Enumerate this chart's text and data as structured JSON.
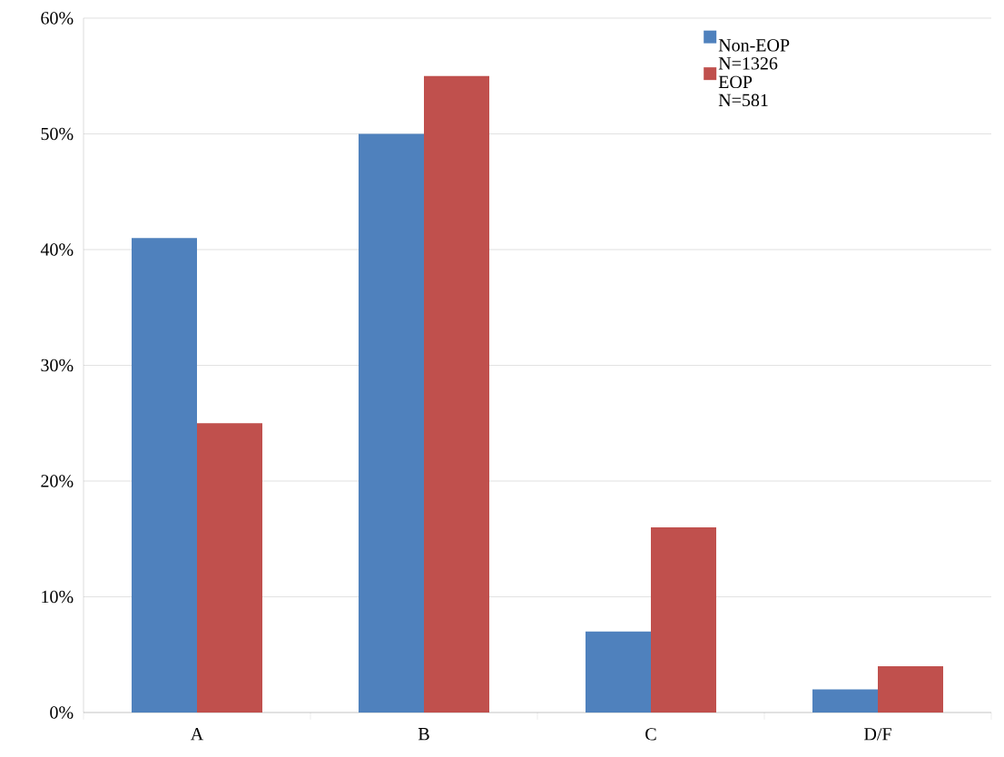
{
  "chart_data": {
    "type": "bar",
    "categories": [
      "A",
      "B",
      "C",
      "D/F"
    ],
    "series": [
      {
        "name": "Non-EOP N=1326",
        "color": "#4f81bd",
        "values": [
          41,
          50,
          7,
          2
        ]
      },
      {
        "name": "EOP N=581",
        "color": "#c0504d",
        "values": [
          25,
          55,
          16,
          4
        ]
      }
    ],
    "ylim": [
      0,
      60
    ],
    "yticks": [
      {
        "value": 0,
        "label": "0%"
      },
      {
        "value": 10,
        "label": "10%"
      },
      {
        "value": 20,
        "label": "20%"
      },
      {
        "value": 30,
        "label": "30%"
      },
      {
        "value": 40,
        "label": "40%"
      },
      {
        "value": 50,
        "label": "50%"
      },
      {
        "value": 60,
        "label": "60%"
      }
    ],
    "grid": "y",
    "legend": "top right"
  }
}
